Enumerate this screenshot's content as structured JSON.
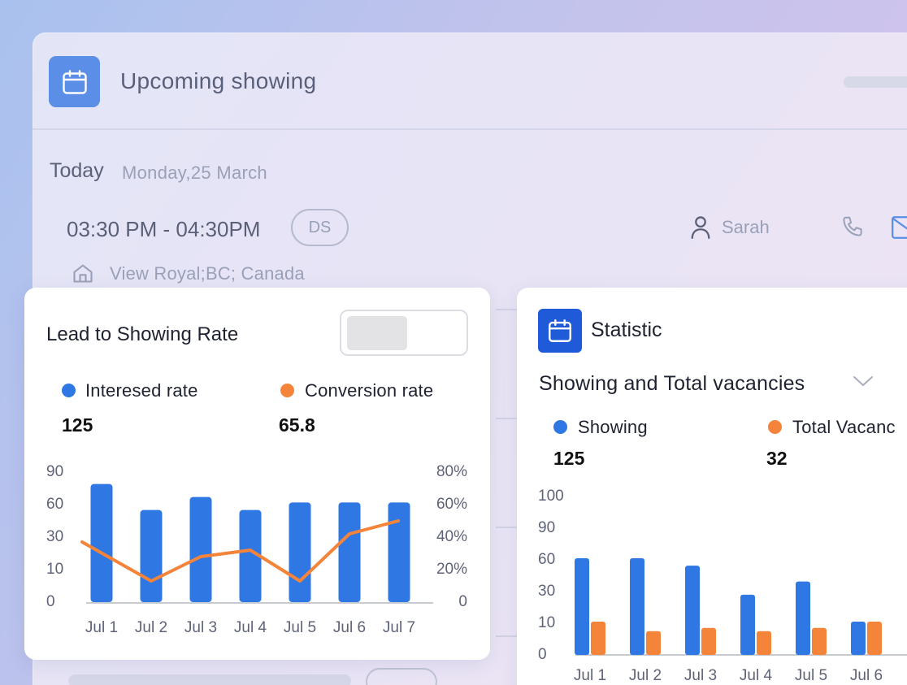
{
  "background_panel": {
    "title": "Upcoming showing",
    "today_label": "Today",
    "today_date": "Monday,25 March",
    "time_range": "03:30 PM - 04:30PM",
    "initials_badge": "DS",
    "agent_name": "Sarah",
    "address": "View Royal;BC; Canada",
    "icons": [
      "calendar-icon",
      "person-icon",
      "phone-icon",
      "mail-icon",
      "home-icon"
    ]
  },
  "lead_card": {
    "title": "Lead to Showing Rate",
    "legend": [
      {
        "label": "Interesed rate",
        "value": "125",
        "color": "#2f78e3"
      },
      {
        "label": "Conversion rate",
        "value": "65.8",
        "color": "#f4843a"
      }
    ]
  },
  "statistic_card": {
    "title": "Statistic",
    "selected_option": "Showing and Total vacancies",
    "legend": [
      {
        "label": "Showing",
        "value": "125",
        "color": "#2f78e3"
      },
      {
        "label": "Total Vacanc",
        "value": "32",
        "color": "#f4843a"
      }
    ]
  },
  "colors": {
    "blue": "#2f78e3",
    "orange": "#f4843a",
    "icon_blue": "#1f5bd8"
  },
  "chart_data": [
    {
      "type": "bar",
      "categories": [
        "Jul 1",
        "Jul 2",
        "Jul 3",
        "Jul 4",
        "Jul 5",
        "Jul 6",
        "Jul 7"
      ],
      "y_ticks": [
        "90",
        "60",
        "30",
        "10",
        "0"
      ],
      "y2_ticks": [
        "80%",
        "60%",
        "40%",
        "20%",
        "0"
      ],
      "series": [
        {
          "name": "Interesed rate",
          "type": "bar",
          "values": [
            79,
            55,
            67,
            55,
            62,
            62,
            62
          ]
        },
        {
          "name": "Conversion rate",
          "type": "line",
          "values": [
            37,
            13,
            28,
            32,
            13,
            42,
            50
          ]
        }
      ]
    },
    {
      "type": "bar",
      "categories": [
        "Jul 1",
        "Jul 2",
        "Jul 3",
        "Jul 4",
        "Jul 5",
        "Jul 6"
      ],
      "y_ticks": [
        "100",
        "90",
        "60",
        "30",
        "10",
        "0"
      ],
      "series": [
        {
          "name": "Showing",
          "values": [
            60,
            60,
            53,
            27,
            38,
            10
          ]
        },
        {
          "name": "Total Vacanc",
          "values": [
            10,
            7,
            8,
            7,
            8,
            10
          ]
        }
      ]
    }
  ]
}
